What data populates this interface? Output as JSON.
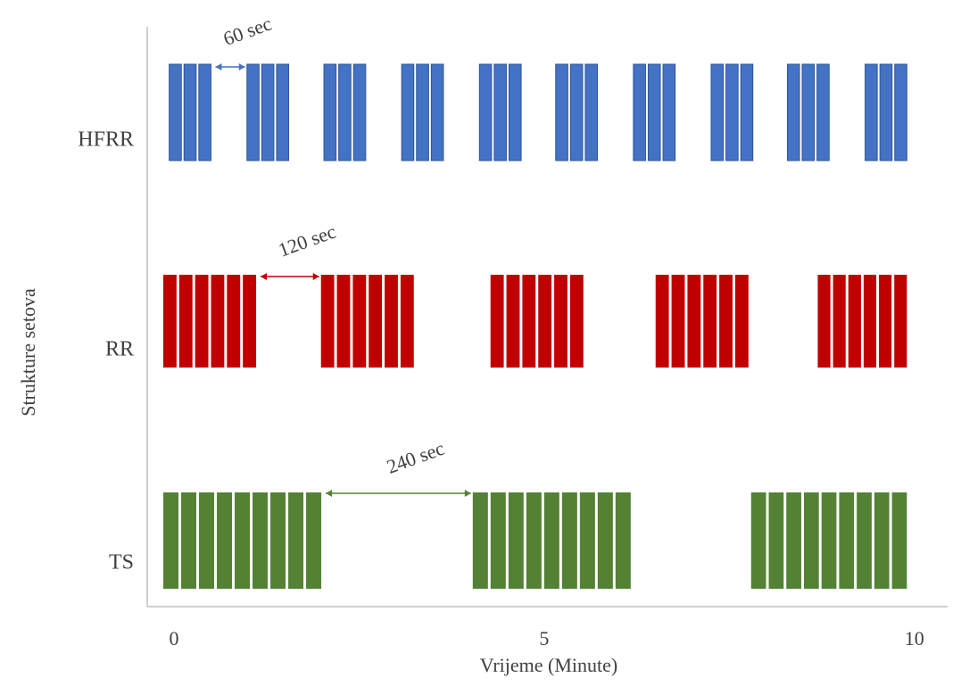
{
  "chart_data": {
    "type": "timeline",
    "xlabel": "Vrijeme (Minute)",
    "ylabel": "Strukture setova",
    "xlim": [
      0,
      10.1
    ],
    "xticks": [
      0,
      5,
      10
    ],
    "series": [
      {
        "name": "HFRR",
        "color": "#4472c4",
        "reps": 3,
        "gap_label": "60 sec",
        "groups": [
          {
            "start": 0.08,
            "end": 0.68
          },
          {
            "start": 1.13,
            "end": 1.73
          },
          {
            "start": 2.17,
            "end": 2.77
          },
          {
            "start": 3.22,
            "end": 3.82
          },
          {
            "start": 4.27,
            "end": 4.87
          },
          {
            "start": 5.3,
            "end": 5.9
          },
          {
            "start": 6.35,
            "end": 6.95
          },
          {
            "start": 7.4,
            "end": 8.0
          },
          {
            "start": 8.43,
            "end": 9.03
          },
          {
            "start": 9.48,
            "end": 10.08
          }
        ]
      },
      {
        "name": "RR",
        "color": "#c00000",
        "reps": 6,
        "gap_label": "120 sec",
        "groups": [
          {
            "start": 0,
            "end": 1.29
          },
          {
            "start": 2.13,
            "end": 3.42
          },
          {
            "start": 4.42,
            "end": 5.71
          },
          {
            "start": 6.65,
            "end": 7.94
          },
          {
            "start": 8.84,
            "end": 10.08
          }
        ]
      },
      {
        "name": "TS",
        "color": "#548235",
        "reps": 9,
        "gap_label": "240 sec",
        "groups": [
          {
            "start": 0,
            "end": 2.17
          },
          {
            "start": 4.18,
            "end": 6.35
          },
          {
            "start": 7.94,
            "end": 10.08
          }
        ]
      }
    ]
  }
}
